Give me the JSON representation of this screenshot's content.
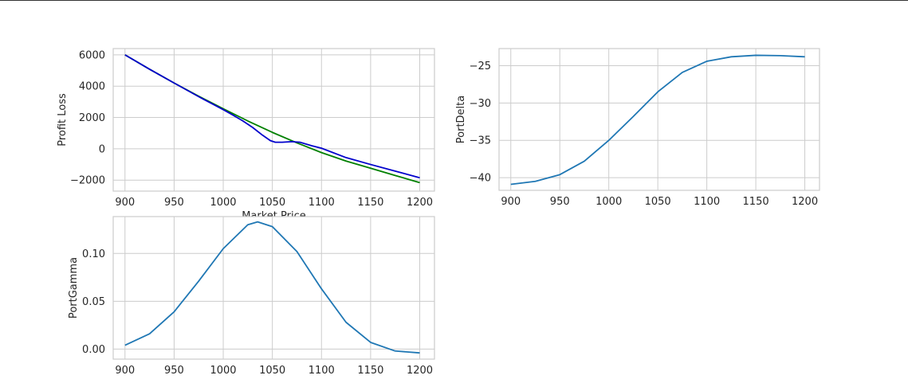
{
  "chart_data": [
    {
      "type": "line",
      "xlabel": "Market Price",
      "ylabel": "Profit Loss",
      "xlim": [
        888,
        1215
      ],
      "ylim": [
        -2700,
        6400
      ],
      "xticks": [
        "900",
        "950",
        "1000",
        "1050",
        "1100",
        "1150",
        "1200"
      ],
      "yticks": [
        "−2000",
        "0",
        "2000",
        "4000",
        "6000"
      ],
      "grid": true,
      "series": [
        {
          "color": "#008000",
          "x": [
            900,
            925,
            950,
            975,
            1000,
            1025,
            1050,
            1075,
            1100,
            1125,
            1150,
            1175,
            1200
          ],
          "y": [
            6000,
            5080,
            4200,
            3360,
            2560,
            1780,
            1050,
            380,
            -240,
            -780,
            -1240,
            -1700,
            -2160
          ]
        },
        {
          "color": "#0000cc",
          "x": [
            900,
            925,
            950,
            975,
            1000,
            1010,
            1020,
            1030,
            1040,
            1048,
            1053,
            1060,
            1070,
            1078,
            1090,
            1100,
            1125,
            1150,
            1175,
            1200
          ],
          "y": [
            6000,
            5080,
            4200,
            3330,
            2500,
            2150,
            1780,
            1360,
            870,
            520,
            420,
            420,
            460,
            420,
            200,
            40,
            -560,
            -1000,
            -1420,
            -1850
          ]
        }
      ]
    },
    {
      "type": "line",
      "xlabel": "",
      "ylabel": "PortDelta",
      "xlim": [
        888,
        1215
      ],
      "ylim": [
        -41.7,
        -22.7
      ],
      "xticks": [
        "900",
        "950",
        "1000",
        "1050",
        "1100",
        "1150",
        "1200"
      ],
      "yticks": [
        "−40",
        "−35",
        "−30",
        "−25"
      ],
      "grid": true,
      "series": [
        {
          "color": "#1f77b4",
          "x": [
            900,
            925,
            950,
            975,
            1000,
            1025,
            1050,
            1075,
            1100,
            1125,
            1150,
            1175,
            1200
          ],
          "y": [
            -40.9,
            -40.5,
            -39.6,
            -37.8,
            -35.0,
            -31.8,
            -28.5,
            -25.9,
            -24.4,
            -23.8,
            -23.6,
            -23.65,
            -23.8
          ]
        }
      ]
    },
    {
      "type": "line",
      "xlabel": "",
      "ylabel": "PortGamma",
      "xlim": [
        888,
        1215
      ],
      "ylim": [
        -0.0105,
        0.1385
      ],
      "xticks": [
        "900",
        "950",
        "1000",
        "1050",
        "1100",
        "1150",
        "1200"
      ],
      "yticks": [
        "0.00",
        "0.05",
        "0.10"
      ],
      "grid": true,
      "series": [
        {
          "color": "#1f77b4",
          "x": [
            900,
            925,
            950,
            975,
            1000,
            1025,
            1035,
            1050,
            1075,
            1100,
            1125,
            1150,
            1175,
            1200
          ],
          "y": [
            0.004,
            0.016,
            0.039,
            0.071,
            0.105,
            0.13,
            0.133,
            0.128,
            0.102,
            0.063,
            0.028,
            0.007,
            -0.002,
            -0.004
          ]
        }
      ]
    }
  ]
}
